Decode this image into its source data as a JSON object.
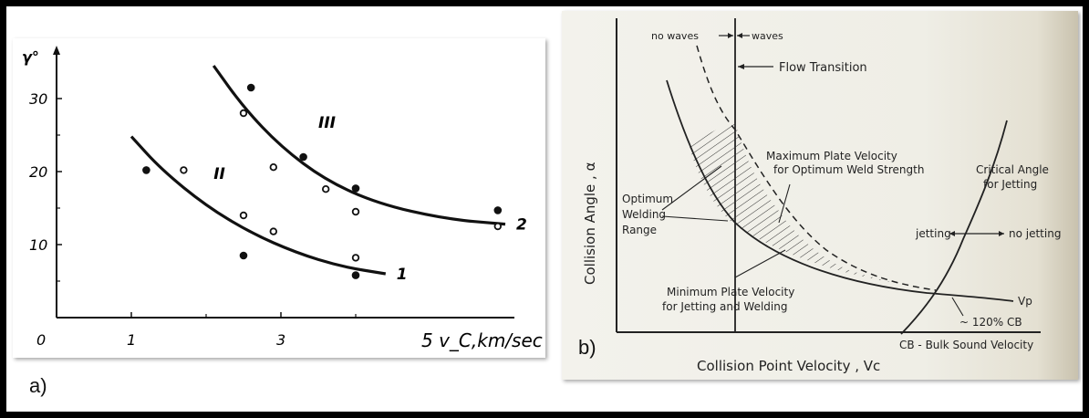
{
  "panels": {
    "a_label": "a)",
    "b_label": "b)"
  },
  "chart_data": [
    {
      "type": "scatter",
      "panel": "a",
      "ylabel": "γ°",
      "xlabel": "v_C,km/sec",
      "xlabel_prefix": "5",
      "origin_label": "0",
      "xticks": [
        "1",
        "3"
      ],
      "yticks": [
        "10",
        "20",
        "30"
      ],
      "xlim": [
        0,
        6
      ],
      "ylim": [
        0,
        36
      ],
      "region_labels": [
        "II",
        "III"
      ],
      "series": [
        {
          "name": "1",
          "curve": [
            [
              1.0,
              24.8
            ],
            [
              1.4,
              20.3
            ],
            [
              2.0,
              15.3
            ],
            [
              2.6,
              11.6
            ],
            [
              3.2,
              8.9
            ],
            [
              3.8,
              7.0
            ],
            [
              4.4,
              6.0
            ]
          ],
          "filled_points": [
            [
              1.2,
              20.2
            ],
            [
              2.5,
              8.5
            ],
            [
              4.0,
              5.8
            ]
          ],
          "open_points": [
            [
              1.7,
              20.2
            ],
            [
              2.5,
              14.0
            ],
            [
              2.9,
              11.8
            ],
            [
              4.0,
              8.2
            ]
          ]
        },
        {
          "name": "2",
          "curve": [
            [
              2.1,
              34.5
            ],
            [
              2.5,
              28.8
            ],
            [
              3.0,
              23.4
            ],
            [
              3.6,
              18.8
            ],
            [
              4.3,
              15.6
            ],
            [
              5.2,
              13.5
            ],
            [
              6.0,
              12.8
            ]
          ],
          "filled_points": [
            [
              2.6,
              31.5
            ],
            [
              3.3,
              22.0
            ],
            [
              4.0,
              17.7
            ],
            [
              5.9,
              14.7
            ]
          ],
          "open_points": [
            [
              2.5,
              28.0
            ],
            [
              2.9,
              20.6
            ],
            [
              3.6,
              17.6
            ],
            [
              4.0,
              14.5
            ],
            [
              5.9,
              12.5
            ]
          ]
        }
      ]
    },
    {
      "type": "line",
      "panel": "b",
      "ylabel": "Collision Angle , α",
      "xlabel": "Collision Point Velocity , Vc",
      "annotations": {
        "no_waves": "no waves",
        "waves": "waves",
        "flow_transition": "Flow Transition",
        "max_plate_1": "Maximum Plate Velocity",
        "max_plate_2": "for Optimum Weld Strength",
        "optimum_1": "Optimum",
        "optimum_2": "Welding",
        "optimum_3": "Range",
        "min_plate_1": "Minimum Plate Velocity",
        "min_plate_2": "for Jetting and Welding",
        "critical_1": "Critical Angle",
        "critical_2": "for Jetting",
        "jetting": "jetting",
        "no_jetting": "no jetting",
        "vp": "Vp",
        "approx": "~ 120% CB",
        "cb": "CB - Bulk Sound Velocity"
      }
    }
  ]
}
